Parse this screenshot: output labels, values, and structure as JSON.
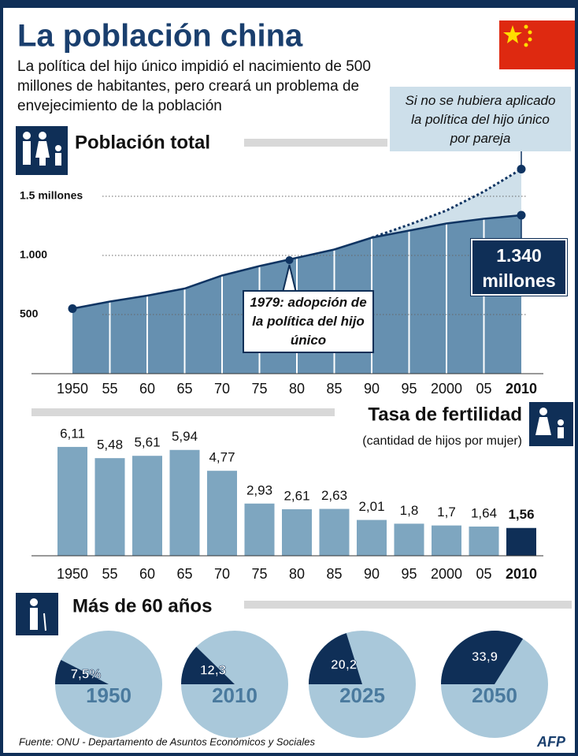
{
  "title": "La población china",
  "subtitle": "La política del hijo único impidió el nacimiento de 500 millones de habitantes, pero creará un problema de envejecimiento de la población",
  "source": "Fuente:  ONU - Departamento de Asuntos Económicos y Sociales",
  "logo": "AFP",
  "chart_data": [
    {
      "type": "area",
      "title": "Población total",
      "x": [
        1950,
        1955,
        1960,
        1965,
        1970,
        1975,
        1980,
        1985,
        1990,
        1995,
        2000,
        2005,
        2010
      ],
      "xticks": [
        1950,
        {
          "value": 1955,
          "label": "55"
        },
        {
          "value": 1960,
          "label": "60"
        },
        {
          "value": 1965,
          "label": "65"
        },
        {
          "value": 1970,
          "label": "70"
        },
        {
          "value": 1975,
          "label": "75"
        },
        {
          "value": 1980,
          "label": "80"
        },
        {
          "value": 1985,
          "label": "85"
        },
        {
          "value": 1990,
          "label": "90"
        },
        {
          "value": 1995,
          "label": "95"
        },
        2000,
        {
          "value": 2005,
          "label": "05"
        },
        2010
      ],
      "ylim": [
        0,
        1800
      ],
      "yticks": [
        500,
        {
          "value": 1000,
          "label": "1.000"
        },
        {
          "value": 1500,
          "label": "1.5 millones"
        }
      ],
      "grid": true,
      "series": [
        {
          "color": "#6690b0",
          "values": [
            550,
            610,
            660,
            720,
            830,
            910,
            980,
            1050,
            1150,
            1210,
            1270,
            1310,
            1340
          ],
          "value_labels": [
            null,
            null,
            null,
            null,
            null,
            null,
            null,
            null,
            null,
            null,
            null,
            null,
            "1.340 millones"
          ]
        },
        {
          "color": "#0f3462",
          "values": [
            null,
            null,
            null,
            null,
            null,
            null,
            null,
            null,
            1150,
            1260,
            1380,
            1540,
            1730
          ]
        }
      ],
      "annotations": [
        {
          "text": "Si no se hubiera aplicado la política del hijo único por pareja"
        },
        {
          "text": "1979: adopción de la política del hijo único",
          "x": 1979,
          "y": 960
        }
      ]
    },
    {
      "type": "bar",
      "title": "Tasa de fertilidad",
      "subtitle": "(cantidad de hijos por mujer)",
      "categories": [
        "1950",
        "55",
        "60",
        "65",
        "70",
        "75",
        "80",
        "85",
        "90",
        "95",
        "2000",
        "05",
        "2010"
      ],
      "values": [
        6.11,
        5.48,
        5.61,
        5.94,
        4.77,
        2.93,
        2.61,
        2.63,
        2.01,
        1.8,
        1.7,
        1.64,
        1.56
      ],
      "value_labels": [
        "6,11",
        "5,48",
        "5,61",
        "5,94",
        "4,77",
        "2,93",
        "2,61",
        "2,63",
        "2,01",
        "1,8",
        "1,7",
        "1,64",
        "1,56"
      ],
      "color": "#7ea6c0",
      "highlight_color": "#0f2f57"
    },
    {
      "type": "pie",
      "title": "Más de 60 años",
      "categories": [
        "1950",
        "2010",
        "2025",
        "2050"
      ],
      "values": [
        7.5,
        12.3,
        20.2,
        33.9
      ],
      "value_labels": [
        "7,5%",
        "12,3",
        "20,2",
        "33,9"
      ],
      "color": "#0f2f57",
      "rest_color": "#a9c8da"
    }
  ]
}
